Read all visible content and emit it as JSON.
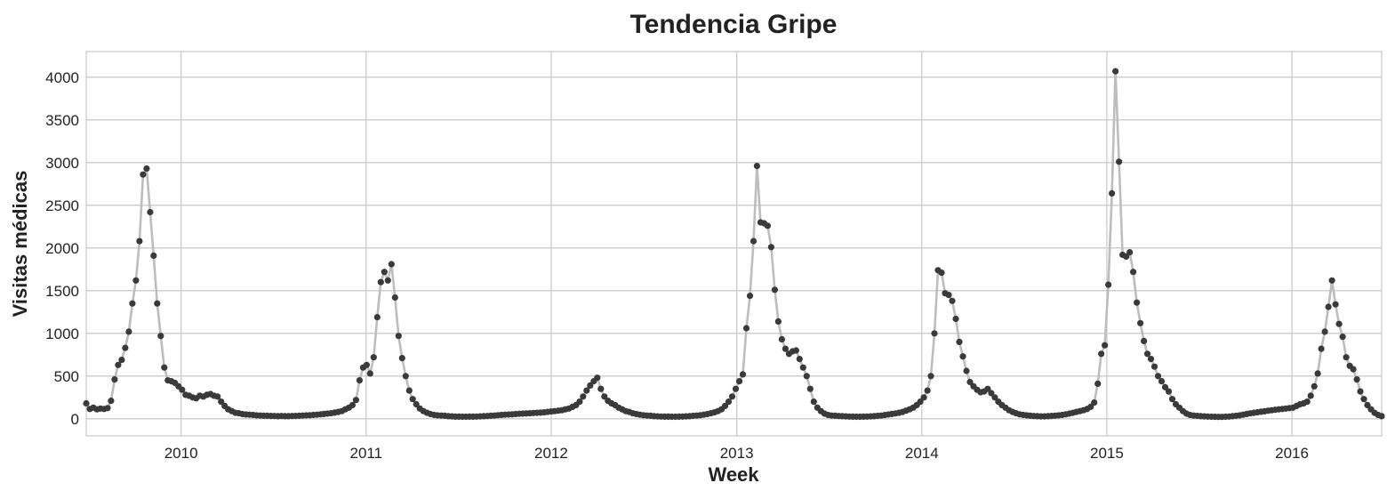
{
  "chart_data": {
    "type": "line",
    "title": "Tendencia Gripe",
    "xlabel": "Week",
    "ylabel": "Visitas médicas",
    "x_start": "2009-06-28",
    "x_step_days": 7,
    "xlim": [
      "2009-06-28",
      "2016-06-26"
    ],
    "ylim": [
      -200,
      4300
    ],
    "xticks": [
      {
        "date": "2010-01-01",
        "label": "2010"
      },
      {
        "date": "2011-01-01",
        "label": "2011"
      },
      {
        "date": "2012-01-01",
        "label": "2012"
      },
      {
        "date": "2013-01-01",
        "label": "2013"
      },
      {
        "date": "2014-01-01",
        "label": "2014"
      },
      {
        "date": "2015-01-01",
        "label": "2015"
      },
      {
        "date": "2016-01-01",
        "label": "2016"
      }
    ],
    "yticks": [
      0,
      500,
      1000,
      1500,
      2000,
      2500,
      3000,
      3500,
      4000
    ],
    "grid": true,
    "legend": false,
    "line_color": "#bdbdbd",
    "marker_color": "#3a3a3a",
    "series": [
      {
        "values": [
          180,
          115,
          130,
          110,
          120,
          115,
          125,
          210,
          460,
          630,
          690,
          830,
          1020,
          1350,
          1620,
          2080,
          2860,
          2930,
          2420,
          1910,
          1350,
          970,
          600,
          450,
          440,
          420,
          380,
          340,
          280,
          270,
          250,
          240,
          270,
          260,
          280,
          290,
          270,
          260,
          200,
          150,
          110,
          90,
          70,
          65,
          55,
          50,
          48,
          45,
          40,
          38,
          35,
          35,
          33,
          32,
          30,
          32,
          30,
          30,
          32,
          33,
          35,
          38,
          40,
          42,
          45,
          48,
          52,
          56,
          60,
          65,
          72,
          80,
          90,
          110,
          130,
          160,
          220,
          450,
          600,
          630,
          530,
          720,
          1190,
          1600,
          1720,
          1620,
          1810,
          1420,
          970,
          710,
          500,
          330,
          230,
          170,
          120,
          90,
          70,
          55,
          45,
          40,
          38,
          35,
          30,
          28,
          25,
          25,
          24,
          24,
          25,
          25,
          26,
          28,
          30,
          32,
          35,
          38,
          42,
          45,
          48,
          50,
          52,
          55,
          58,
          60,
          62,
          65,
          68,
          70,
          72,
          75,
          80,
          85,
          90,
          95,
          100,
          110,
          120,
          140,
          160,
          200,
          260,
          330,
          390,
          440,
          480,
          350,
          260,
          210,
          180,
          160,
          130,
          110,
          90,
          80,
          65,
          55,
          48,
          42,
          38,
          35,
          30,
          28,
          26,
          25,
          25,
          24,
          24,
          25,
          26,
          28,
          30,
          34,
          38,
          42,
          48,
          55,
          65,
          75,
          90,
          110,
          150,
          200,
          260,
          350,
          440,
          520,
          1060,
          1440,
          2080,
          2960,
          2300,
          2290,
          2260,
          2010,
          1510,
          1140,
          930,
          820,
          760,
          790,
          800,
          700,
          600,
          500,
          350,
          200,
          130,
          90,
          60,
          45,
          38,
          35,
          32,
          30,
          28,
          26,
          25,
          24,
          24,
          25,
          26,
          28,
          30,
          34,
          38,
          44,
          50,
          56,
          62,
          70,
          80,
          95,
          110,
          130,
          160,
          200,
          250,
          330,
          500,
          1000,
          1740,
          1710,
          1470,
          1450,
          1380,
          1170,
          900,
          730,
          560,
          430,
          380,
          340,
          310,
          320,
          350,
          300,
          250,
          200,
          160,
          130,
          100,
          80,
          65,
          52,
          45,
          40,
          35,
          32,
          30,
          28,
          28,
          30,
          33,
          36,
          40,
          45,
          52,
          60,
          70,
          80,
          90,
          100,
          115,
          140,
          190,
          410,
          760,
          860,
          1570,
          2640,
          4070,
          3010,
          1920,
          1900,
          1950,
          1720,
          1360,
          1120,
          910,
          760,
          700,
          610,
          500,
          440,
          370,
          320,
          230,
          170,
          130,
          90,
          60,
          45,
          38,
          34,
          30,
          28,
          26,
          24,
          23,
          22,
          22,
          24,
          26,
          30,
          34,
          40,
          48,
          56,
          64,
          70,
          76,
          82,
          88,
          95,
          100,
          105,
          110,
          115,
          120,
          125,
          130,
          150,
          170,
          180,
          200,
          270,
          380,
          530,
          820,
          1020,
          1310,
          1620,
          1340,
          1110,
          960,
          720,
          620,
          580,
          460,
          320,
          230,
          160,
          110,
          70,
          45,
          30
        ]
      }
    ]
  }
}
